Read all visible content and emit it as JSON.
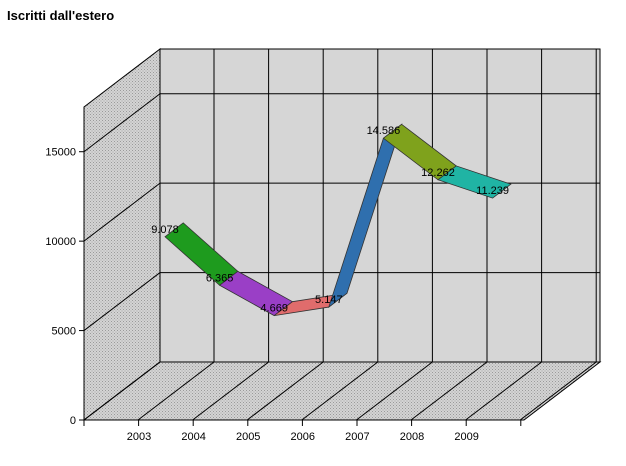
{
  "chart_data": {
    "type": "line",
    "title": "Iscritti dall'estero",
    "xlabel": "",
    "ylabel": "",
    "categories": [
      "2003",
      "2004",
      "2005",
      "2006",
      "2007",
      "2008",
      "2009"
    ],
    "values": [
      9078,
      6365,
      4669,
      5147,
      14586,
      12262,
      11239
    ],
    "data_labels": [
      "9.078",
      "6.365",
      "4.669",
      "5.147",
      "14.586",
      "12.262",
      "11.239"
    ],
    "y_ticks": [
      "0",
      "5000",
      "10000",
      "15000"
    ],
    "y_tick_values": [
      0,
      5000,
      10000,
      15000
    ],
    "ylim": [
      0,
      17500
    ],
    "grid": true,
    "three_d": true,
    "segment_colors": [
      "#1e9b1e",
      "#9a3fc6",
      "#e06c6c",
      "#2f6fae",
      "#7fa21c",
      "#20b4a4"
    ],
    "legend": "none"
  }
}
